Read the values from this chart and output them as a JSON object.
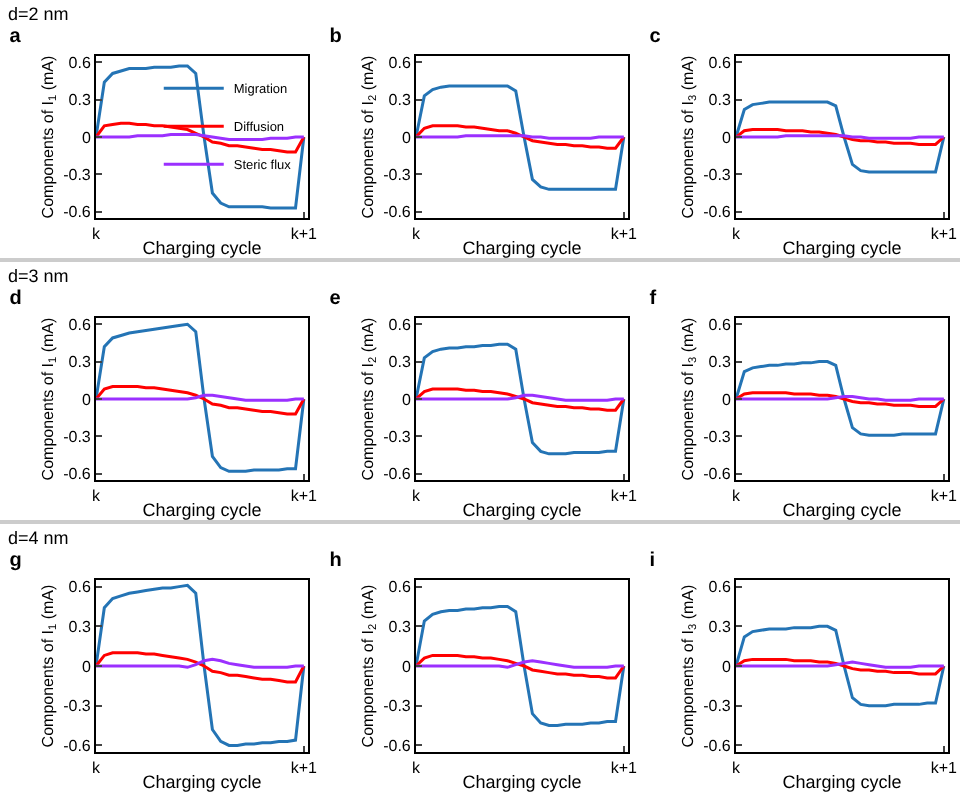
{
  "chart_data": [
    {
      "type": "line",
      "title": "a",
      "annotations": [
        "d=2 nm"
      ],
      "xlabel": "Charging cycle",
      "ylabel": "Components of I$_{1}$ (mA)",
      "ylim": [
        -0.65,
        0.65
      ],
      "yticks": [
        -0.6,
        -0.3,
        0,
        0.3,
        0.6
      ],
      "grid": false,
      "legend": "top right",
      "categories": [
        "k",
        null,
        null,
        null,
        null,
        null,
        null,
        null,
        null,
        null,
        null,
        null,
        null,
        null,
        null,
        null,
        null,
        null,
        null,
        null,
        null,
        null,
        null,
        null,
        null,
        "k+1"
      ],
      "series": [
        {
          "name": "Migration",
          "color": "#2474b5",
          "values": [
            0,
            0.44,
            0.51,
            0.53,
            0.55,
            0.55,
            0.55,
            0.56,
            0.56,
            0.56,
            0.57,
            0.57,
            0.51,
            0,
            -0.45,
            -0.53,
            -0.56,
            -0.56,
            -0.56,
            -0.56,
            -0.56,
            -0.57,
            -0.57,
            -0.57,
            -0.57,
            0
          ]
        },
        {
          "name": "Diffusion",
          "color": "#ff0000",
          "values": [
            0,
            0.09,
            0.1,
            0.11,
            0.11,
            0.1,
            0.1,
            0.09,
            0.09,
            0.08,
            0.07,
            0.06,
            0.03,
            0,
            -0.04,
            -0.05,
            -0.07,
            -0.07,
            -0.08,
            -0.09,
            -0.1,
            -0.1,
            -0.11,
            -0.12,
            -0.12,
            0
          ]
        },
        {
          "name": "Steric flux",
          "color": "#9b30ff",
          "values": [
            0,
            0,
            0,
            0,
            0,
            0.01,
            0.01,
            0.01,
            0.01,
            0.02,
            0.02,
            0.02,
            0.02,
            0.01,
            0,
            -0.01,
            -0.02,
            -0.02,
            -0.02,
            -0.02,
            -0.02,
            -0.01,
            -0.01,
            -0.01,
            0,
            0
          ]
        }
      ]
    },
    {
      "type": "line",
      "title": "b",
      "xlabel": "Charging cycle",
      "ylabel": "Components of I$_{2}$ (mA)",
      "ylim": [
        -0.65,
        0.65
      ],
      "yticks": [
        -0.6,
        -0.3,
        0,
        0.3,
        0.6
      ],
      "grid": false,
      "categories": [
        "k",
        null,
        null,
        null,
        null,
        null,
        null,
        null,
        null,
        null,
        null,
        null,
        null,
        null,
        null,
        null,
        null,
        null,
        null,
        null,
        null,
        null,
        null,
        null,
        null,
        "k+1"
      ],
      "series": [
        {
          "color": "#2474b5",
          "values": [
            0,
            0.33,
            0.38,
            0.4,
            0.41,
            0.41,
            0.41,
            0.41,
            0.41,
            0.41,
            0.41,
            0.41,
            0.37,
            0,
            -0.34,
            -0.4,
            -0.42,
            -0.42,
            -0.42,
            -0.42,
            -0.42,
            -0.42,
            -0.42,
            -0.42,
            -0.42,
            0
          ]
        },
        {
          "color": "#ff0000",
          "values": [
            0,
            0.07,
            0.09,
            0.09,
            0.09,
            0.09,
            0.08,
            0.08,
            0.07,
            0.06,
            0.05,
            0.05,
            0.03,
            0,
            -0.03,
            -0.04,
            -0.05,
            -0.06,
            -0.06,
            -0.07,
            -0.07,
            -0.08,
            -0.08,
            -0.09,
            -0.09,
            0
          ]
        },
        {
          "color": "#9b30ff",
          "values": [
            0,
            0,
            0,
            0,
            0,
            0,
            0.01,
            0.01,
            0.01,
            0.01,
            0.01,
            0.01,
            0.01,
            0.01,
            0,
            0,
            -0.01,
            -0.01,
            -0.01,
            -0.01,
            -0.01,
            -0.01,
            0,
            0,
            0,
            0
          ]
        }
      ]
    },
    {
      "type": "line",
      "title": "c",
      "xlabel": "Charging cycle",
      "ylabel": "Components of I$_{3}$ (mA)",
      "ylim": [
        -0.65,
        0.65
      ],
      "yticks": [
        -0.6,
        -0.3,
        0,
        0.3,
        0.6
      ],
      "grid": false,
      "categories": [
        "k",
        null,
        null,
        null,
        null,
        null,
        null,
        null,
        null,
        null,
        null,
        null,
        null,
        null,
        null,
        null,
        null,
        null,
        null,
        null,
        null,
        null,
        null,
        null,
        null,
        "k+1"
      ],
      "series": [
        {
          "color": "#2474b5",
          "values": [
            0,
            0.22,
            0.26,
            0.27,
            0.28,
            0.28,
            0.28,
            0.28,
            0.28,
            0.28,
            0.28,
            0.28,
            0.25,
            0,
            -0.22,
            -0.27,
            -0.28,
            -0.28,
            -0.28,
            -0.28,
            -0.28,
            -0.28,
            -0.28,
            -0.28,
            -0.28,
            0
          ]
        },
        {
          "color": "#ff0000",
          "values": [
            0,
            0.05,
            0.06,
            0.06,
            0.06,
            0.06,
            0.05,
            0.05,
            0.05,
            0.04,
            0.04,
            0.03,
            0.02,
            0,
            -0.02,
            -0.03,
            -0.03,
            -0.04,
            -0.04,
            -0.05,
            -0.05,
            -0.05,
            -0.06,
            -0.06,
            -0.06,
            0
          ]
        },
        {
          "color": "#9b30ff",
          "values": [
            0,
            0,
            0,
            0,
            0,
            0,
            0.01,
            0.01,
            0.01,
            0.01,
            0.01,
            0.01,
            0.01,
            0.01,
            0,
            0,
            -0.01,
            -0.01,
            -0.01,
            -0.01,
            -0.01,
            -0.01,
            0,
            0,
            0,
            0
          ]
        }
      ]
    },
    {
      "type": "line",
      "title": "d",
      "annotations": [
        "d=3 nm"
      ],
      "xlabel": "Charging cycle",
      "ylabel": "Components of I$_{1}$ (mA)",
      "ylim": [
        -0.65,
        0.65
      ],
      "yticks": [
        -0.6,
        -0.3,
        0,
        0.3,
        0.6
      ],
      "grid": false,
      "categories": [
        "k",
        null,
        null,
        null,
        null,
        null,
        null,
        null,
        null,
        null,
        null,
        null,
        null,
        null,
        null,
        null,
        null,
        null,
        null,
        null,
        null,
        null,
        null,
        null,
        null,
        "k+1"
      ],
      "series": [
        {
          "color": "#2474b5",
          "values": [
            0,
            0.42,
            0.49,
            0.51,
            0.53,
            0.54,
            0.55,
            0.56,
            0.57,
            0.58,
            0.59,
            0.6,
            0.54,
            0,
            -0.46,
            -0.55,
            -0.58,
            -0.58,
            -0.58,
            -0.57,
            -0.57,
            -0.57,
            -0.57,
            -0.56,
            -0.56,
            0
          ]
        },
        {
          "color": "#ff0000",
          "values": [
            0,
            0.08,
            0.1,
            0.1,
            0.1,
            0.1,
            0.09,
            0.09,
            0.08,
            0.07,
            0.06,
            0.05,
            0.03,
            0,
            -0.04,
            -0.05,
            -0.07,
            -0.07,
            -0.08,
            -0.09,
            -0.1,
            -0.1,
            -0.11,
            -0.12,
            -0.12,
            0
          ]
        },
        {
          "color": "#9b30ff",
          "values": [
            0,
            0,
            0,
            0,
            0,
            0,
            0,
            0,
            0,
            0,
            0,
            0,
            0.01,
            0.03,
            0.03,
            0.02,
            0.01,
            0,
            -0.01,
            -0.01,
            -0.01,
            -0.01,
            -0.01,
            -0.01,
            0,
            0
          ]
        }
      ]
    },
    {
      "type": "line",
      "title": "e",
      "xlabel": "Charging cycle",
      "ylabel": "Components of I$_{2}$ (mA)",
      "ylim": [
        -0.65,
        0.65
      ],
      "yticks": [
        -0.6,
        -0.3,
        0,
        0.3,
        0.6
      ],
      "grid": false,
      "categories": [
        "k",
        null,
        null,
        null,
        null,
        null,
        null,
        null,
        null,
        null,
        null,
        null,
        null,
        null,
        null,
        null,
        null,
        null,
        null,
        null,
        null,
        null,
        null,
        null,
        null,
        "k+1"
      ],
      "series": [
        {
          "color": "#2474b5",
          "values": [
            0,
            0.33,
            0.38,
            0.4,
            0.41,
            0.41,
            0.42,
            0.42,
            0.43,
            0.43,
            0.44,
            0.44,
            0.4,
            0,
            -0.35,
            -0.42,
            -0.44,
            -0.44,
            -0.44,
            -0.43,
            -0.43,
            -0.43,
            -0.43,
            -0.42,
            -0.42,
            0
          ]
        },
        {
          "color": "#ff0000",
          "values": [
            0,
            0.06,
            0.08,
            0.08,
            0.08,
            0.08,
            0.07,
            0.07,
            0.06,
            0.06,
            0.05,
            0.04,
            0.02,
            0,
            -0.03,
            -0.04,
            -0.05,
            -0.06,
            -0.06,
            -0.07,
            -0.07,
            -0.08,
            -0.08,
            -0.09,
            -0.09,
            0
          ]
        },
        {
          "color": "#9b30ff",
          "values": [
            0,
            0,
            0,
            0,
            0,
            0,
            0,
            0,
            0,
            0,
            0,
            0,
            0.01,
            0.03,
            0.03,
            0.02,
            0.01,
            0,
            -0.01,
            -0.01,
            -0.01,
            -0.01,
            -0.01,
            -0.01,
            0,
            0
          ]
        }
      ]
    },
    {
      "type": "line",
      "title": "f",
      "xlabel": "Charging cycle",
      "ylabel": "Components of I$_{3}$ (mA)",
      "ylim": [
        -0.65,
        0.65
      ],
      "yticks": [
        -0.6,
        -0.3,
        0,
        0.3,
        0.6
      ],
      "grid": false,
      "categories": [
        "k",
        null,
        null,
        null,
        null,
        null,
        null,
        null,
        null,
        null,
        null,
        null,
        null,
        null,
        null,
        null,
        null,
        null,
        null,
        null,
        null,
        null,
        null,
        null,
        null,
        "k+1"
      ],
      "series": [
        {
          "color": "#2474b5",
          "values": [
            0,
            0.22,
            0.25,
            0.26,
            0.27,
            0.27,
            0.28,
            0.28,
            0.29,
            0.29,
            0.3,
            0.3,
            0.27,
            0,
            -0.23,
            -0.28,
            -0.29,
            -0.29,
            -0.29,
            -0.29,
            -0.28,
            -0.28,
            -0.28,
            -0.28,
            -0.28,
            0
          ]
        },
        {
          "color": "#ff0000",
          "values": [
            0,
            0.04,
            0.05,
            0.05,
            0.05,
            0.05,
            0.05,
            0.04,
            0.04,
            0.04,
            0.03,
            0.03,
            0.02,
            0,
            -0.02,
            -0.03,
            -0.03,
            -0.04,
            -0.04,
            -0.05,
            -0.05,
            -0.05,
            -0.06,
            -0.06,
            -0.06,
            0
          ]
        },
        {
          "color": "#9b30ff",
          "values": [
            0,
            0,
            0,
            0,
            0,
            0,
            0,
            0,
            0,
            0,
            0,
            0,
            0.01,
            0.02,
            0.02,
            0.01,
            0,
            0,
            -0.01,
            -0.01,
            -0.01,
            -0.01,
            0,
            0,
            0,
            0
          ]
        }
      ]
    },
    {
      "type": "line",
      "title": "g",
      "annotations": [
        "d=4 nm"
      ],
      "xlabel": "Charging cycle",
      "ylabel": "Components of I$_{1}$ (mA)",
      "ylim": [
        -0.65,
        0.65
      ],
      "yticks": [
        -0.6,
        -0.3,
        0,
        0.3,
        0.6
      ],
      "grid": false,
      "categories": [
        "k",
        null,
        null,
        null,
        null,
        null,
        null,
        null,
        null,
        null,
        null,
        null,
        null,
        null,
        null,
        null,
        null,
        null,
        null,
        null,
        null,
        null,
        null,
        null,
        null,
        "k+1"
      ],
      "series": [
        {
          "color": "#2474b5",
          "values": [
            0,
            0.44,
            0.51,
            0.53,
            0.55,
            0.56,
            0.57,
            0.58,
            0.59,
            0.59,
            0.6,
            0.61,
            0.55,
            0,
            -0.48,
            -0.57,
            -0.6,
            -0.6,
            -0.59,
            -0.59,
            -0.58,
            -0.58,
            -0.57,
            -0.57,
            -0.56,
            0
          ]
        },
        {
          "color": "#ff0000",
          "values": [
            0,
            0.08,
            0.1,
            0.1,
            0.1,
            0.1,
            0.09,
            0.09,
            0.08,
            0.07,
            0.06,
            0.05,
            0.03,
            0,
            -0.04,
            -0.05,
            -0.07,
            -0.07,
            -0.08,
            -0.09,
            -0.1,
            -0.1,
            -0.11,
            -0.12,
            -0.12,
            0
          ]
        },
        {
          "color": "#9b30ff",
          "values": [
            0,
            0,
            0,
            0,
            0,
            0,
            0,
            0,
            0,
            0,
            0,
            -0.01,
            0.01,
            0.04,
            0.05,
            0.04,
            0.02,
            0.01,
            0,
            -0.01,
            -0.01,
            -0.01,
            -0.01,
            -0.01,
            0,
            0
          ]
        }
      ]
    },
    {
      "type": "line",
      "title": "h",
      "xlabel": "Charging cycle",
      "ylabel": "Components of I$_{2}$ (mA)",
      "ylim": [
        -0.65,
        0.65
      ],
      "yticks": [
        -0.6,
        -0.3,
        0,
        0.3,
        0.6
      ],
      "grid": false,
      "categories": [
        "k",
        null,
        null,
        null,
        null,
        null,
        null,
        null,
        null,
        null,
        null,
        null,
        null,
        null,
        null,
        null,
        null,
        null,
        null,
        null,
        null,
        null,
        null,
        null,
        null,
        "k+1"
      ],
      "series": [
        {
          "color": "#2474b5",
          "values": [
            0,
            0.34,
            0.39,
            0.41,
            0.42,
            0.42,
            0.43,
            0.43,
            0.44,
            0.44,
            0.45,
            0.45,
            0.41,
            0,
            -0.36,
            -0.43,
            -0.45,
            -0.45,
            -0.44,
            -0.44,
            -0.44,
            -0.43,
            -0.43,
            -0.42,
            -0.42,
            0
          ]
        },
        {
          "color": "#ff0000",
          "values": [
            0,
            0.06,
            0.08,
            0.08,
            0.08,
            0.08,
            0.07,
            0.07,
            0.06,
            0.06,
            0.05,
            0.04,
            0.02,
            0,
            -0.03,
            -0.04,
            -0.05,
            -0.06,
            -0.06,
            -0.07,
            -0.07,
            -0.08,
            -0.08,
            -0.09,
            -0.09,
            0
          ]
        },
        {
          "color": "#9b30ff",
          "values": [
            0,
            0,
            0,
            0,
            0,
            0,
            0,
            0,
            0,
            0,
            0,
            -0.01,
            0.01,
            0.03,
            0.04,
            0.03,
            0.02,
            0.01,
            0,
            -0.01,
            -0.01,
            -0.01,
            -0.01,
            -0.01,
            0,
            0
          ]
        }
      ]
    },
    {
      "type": "line",
      "title": "i",
      "xlabel": "Charging cycle",
      "ylabel": "Components of I$_{3}$ (mA)",
      "ylim": [
        -0.65,
        0.65
      ],
      "yticks": [
        -0.6,
        -0.3,
        0,
        0.3,
        0.6
      ],
      "grid": false,
      "categories": [
        "k",
        null,
        null,
        null,
        null,
        null,
        null,
        null,
        null,
        null,
        null,
        null,
        null,
        null,
        null,
        null,
        null,
        null,
        null,
        null,
        null,
        null,
        null,
        null,
        null,
        "k+1"
      ],
      "series": [
        {
          "color": "#2474b5",
          "values": [
            0,
            0.22,
            0.26,
            0.27,
            0.28,
            0.28,
            0.28,
            0.29,
            0.29,
            0.29,
            0.3,
            0.3,
            0.27,
            0,
            -0.24,
            -0.29,
            -0.3,
            -0.3,
            -0.3,
            -0.29,
            -0.29,
            -0.29,
            -0.29,
            -0.28,
            -0.28,
            0
          ]
        },
        {
          "color": "#ff0000",
          "values": [
            0,
            0.04,
            0.05,
            0.05,
            0.05,
            0.05,
            0.05,
            0.04,
            0.04,
            0.04,
            0.03,
            0.03,
            0.02,
            0,
            -0.02,
            -0.03,
            -0.03,
            -0.04,
            -0.04,
            -0.05,
            -0.05,
            -0.05,
            -0.06,
            -0.06,
            -0.06,
            0
          ]
        },
        {
          "color": "#9b30ff",
          "values": [
            0,
            0,
            0,
            0,
            0,
            0,
            0,
            0,
            0,
            0,
            0,
            0,
            0.01,
            0.02,
            0.03,
            0.02,
            0.01,
            0,
            -0.01,
            -0.01,
            -0.01,
            -0.01,
            0,
            0,
            0,
            0
          ]
        }
      ]
    }
  ]
}
